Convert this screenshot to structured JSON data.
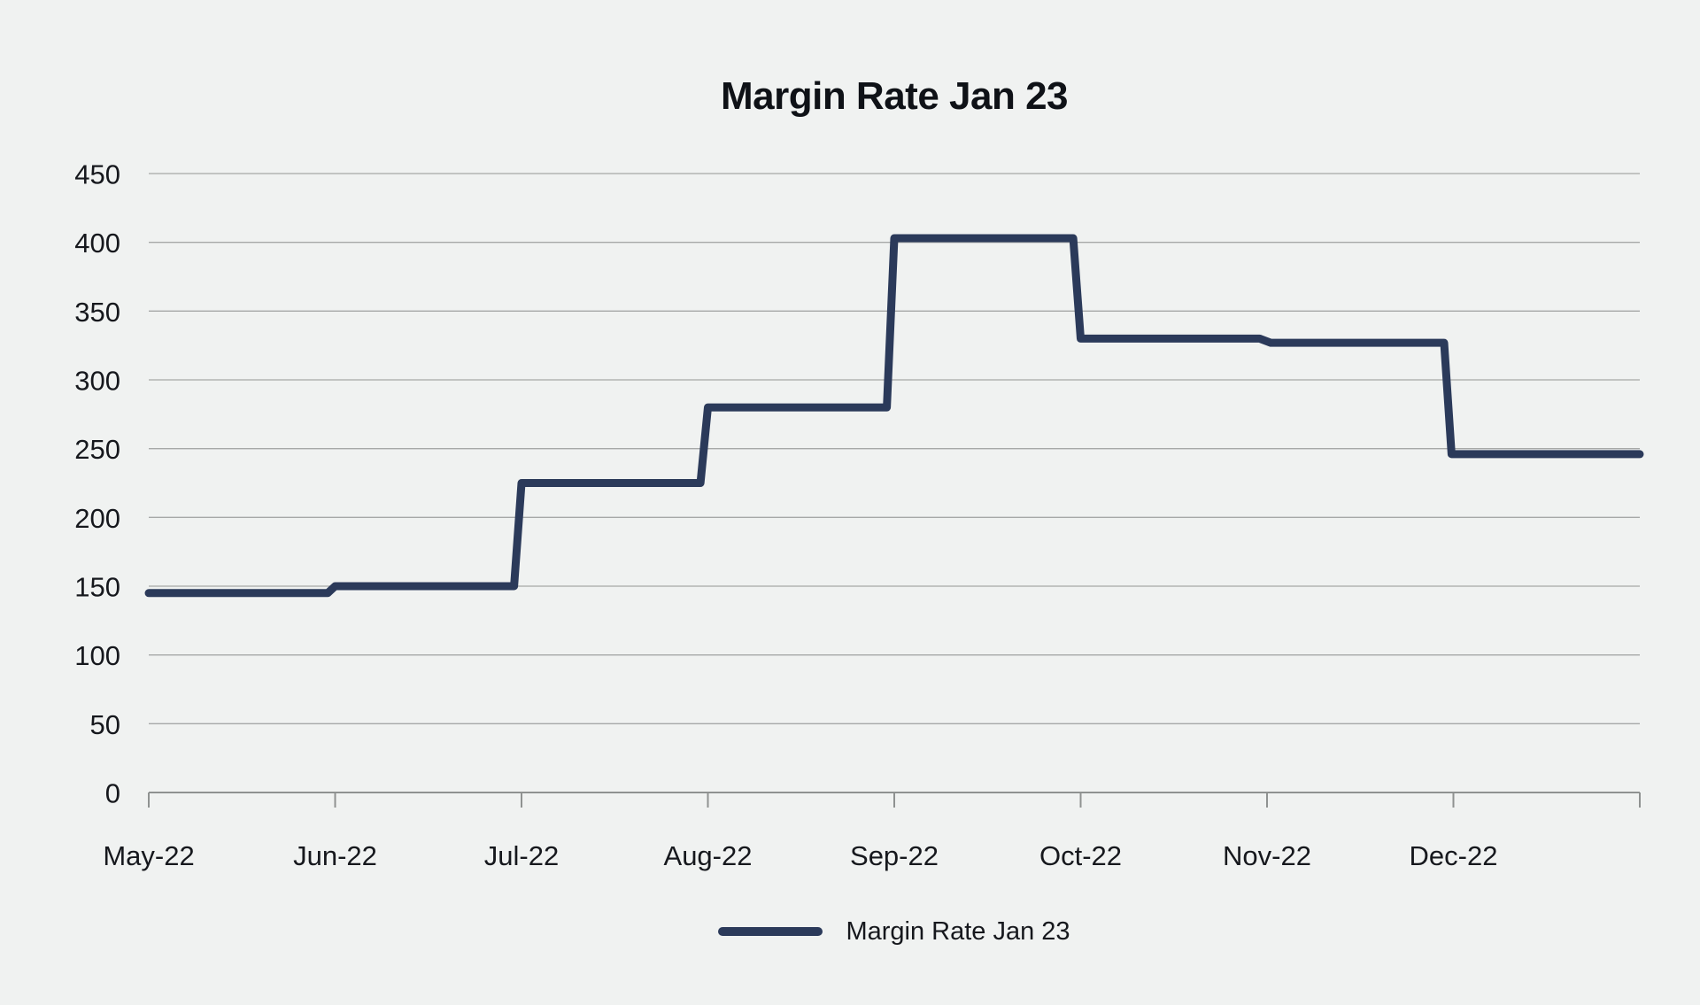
{
  "chart_data": {
    "type": "line",
    "title": "Margin Rate Jan 23",
    "xlabel": "",
    "ylabel": "",
    "ylim": [
      0,
      450
    ],
    "y_ticks": [
      0,
      50,
      100,
      150,
      200,
      250,
      300,
      350,
      400,
      450
    ],
    "x_tick_labels": [
      "May-22",
      "Jun-22",
      "Jul-22",
      "Aug-22",
      "Sep-22",
      "Oct-22",
      "Nov-22",
      "Dec-22"
    ],
    "x_months_span": 8,
    "grid": true,
    "legend": {
      "position": "bottom",
      "entries": [
        {
          "label": "Margin Rate Jan 23",
          "color": "#2b3a5a"
        }
      ]
    },
    "series": [
      {
        "name": "Margin Rate Jan 23",
        "color": "#2b3a5a",
        "stroke_width": 9,
        "monthly_values": {
          "May-22": 145,
          "Jun-22": 150,
          "Jul-22": 225,
          "Aug-22": 280,
          "Sep-22": 403,
          "Oct-22": 330,
          "Nov-22": 327,
          "Dec-22": 246
        },
        "points": [
          [
            0.0,
            145
          ],
          [
            0.96,
            145
          ],
          [
            1.0,
            150
          ],
          [
            1.96,
            150
          ],
          [
            2.0,
            225
          ],
          [
            2.96,
            225
          ],
          [
            3.0,
            280
          ],
          [
            3.96,
            280
          ],
          [
            4.0,
            403
          ],
          [
            4.96,
            403
          ],
          [
            5.0,
            330
          ],
          [
            5.96,
            330
          ],
          [
            6.02,
            327
          ],
          [
            6.95,
            327
          ],
          [
            6.99,
            246
          ],
          [
            8.0,
            246
          ]
        ]
      }
    ],
    "colors": {
      "background": "#f0f2f1",
      "line": "#2b3a5a",
      "gridline": "#a6a8a7",
      "axis": "#8f9291",
      "tick_text": "#16181d",
      "title_text": "#0f1217"
    }
  }
}
